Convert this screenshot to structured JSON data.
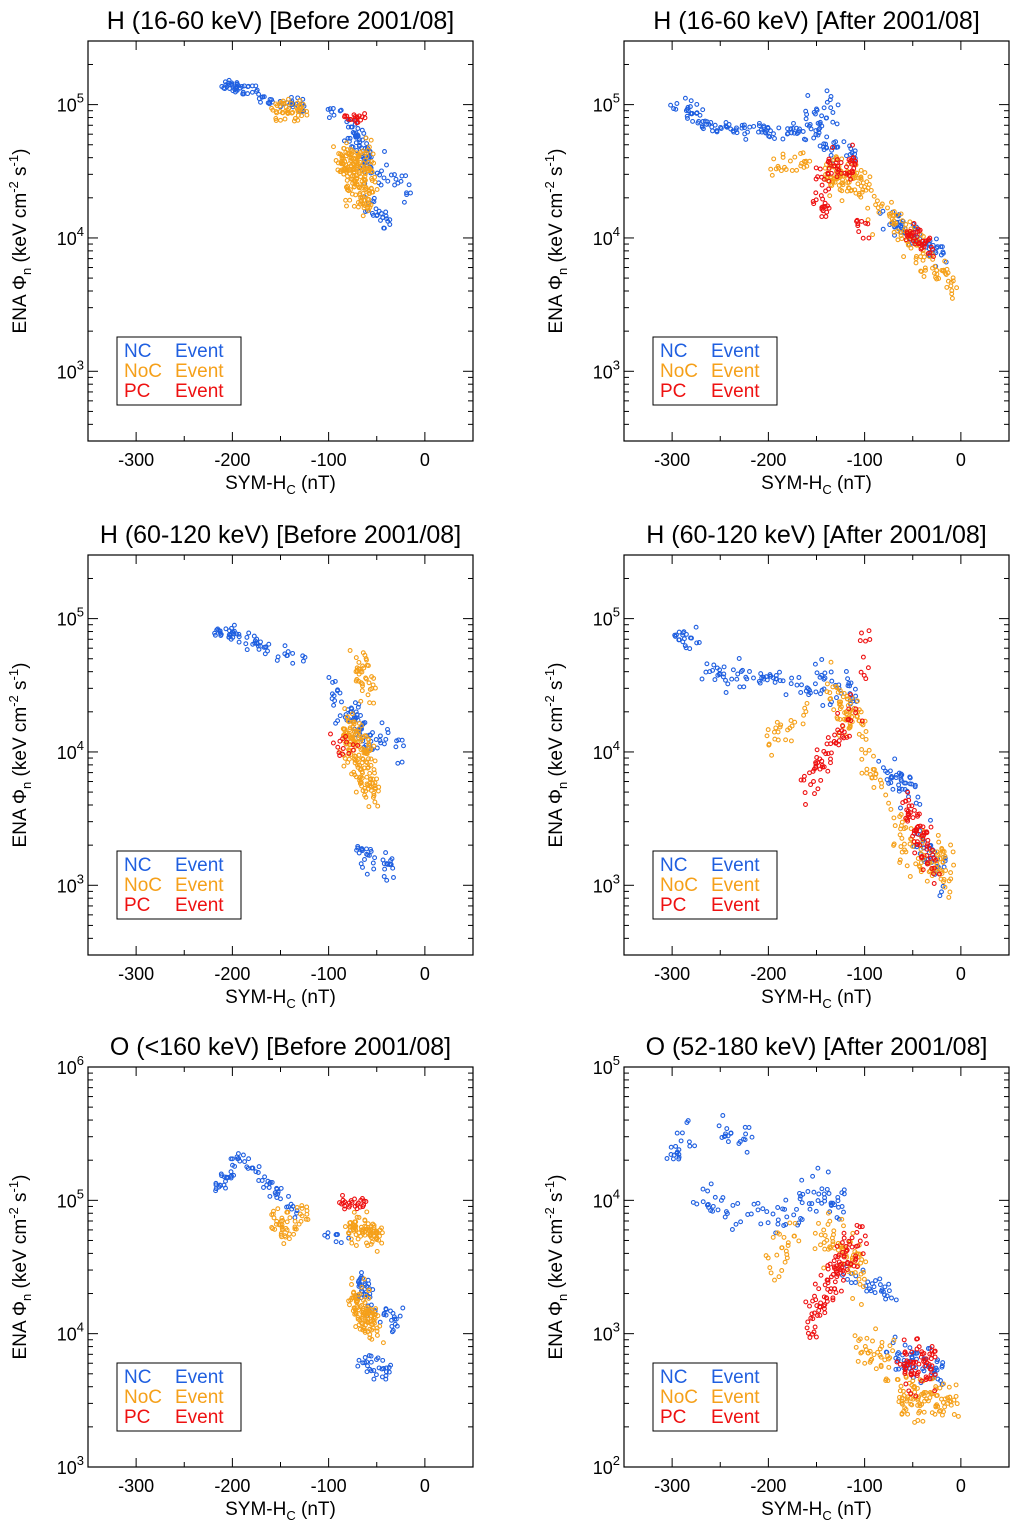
{
  "colors": {
    "nc": "#1f5fe0",
    "noc": "#f5a01a",
    "pc": "#ee1111",
    "axis": "#000000"
  },
  "legend": {
    "placement": "lower-left",
    "entries": [
      {
        "key": "nc",
        "name": "NC",
        "label": "Event"
      },
      {
        "key": "noc",
        "name": "NoC",
        "label": "Event"
      },
      {
        "key": "pc",
        "name": "PC",
        "label": "Event"
      }
    ]
  },
  "chart_data": [
    {
      "type": "scatter",
      "title": "H (16-60 keV) [Before 2001/08]",
      "xlabel": "SYM-H_C (nT)",
      "ylabel": "ENA Φ_n (keV cm^-2 s^-1)",
      "xlim": [
        -350,
        50
      ],
      "ylim": [
        300,
        300000
      ],
      "yscale": "log",
      "xticks": [
        -300,
        -200,
        -100,
        0
      ],
      "yticks": [
        "10^3",
        "10^4",
        "10^5"
      ],
      "series": [
        {
          "key": "nc",
          "clusters": [
            {
              "x0": -215,
              "x1": -175,
              "y0": 140000,
              "y1": 130000,
              "n": 40,
              "s": 0.05
            },
            {
              "x0": -175,
              "x1": -125,
              "y0": 120000,
              "y1": 95000,
              "n": 35,
              "s": 0.07
            },
            {
              "x0": -100,
              "x1": -90,
              "y0": 88000,
              "y1": 82000,
              "n": 8,
              "s": 0.05
            },
            {
              "x0": -80,
              "x1": -55,
              "y0": 75000,
              "y1": 35000,
              "n": 60,
              "s": 0.12
            },
            {
              "x0": -65,
              "x1": -15,
              "y0": 35000,
              "y1": 23000,
              "n": 30,
              "s": 0.1
            },
            {
              "x0": -60,
              "x1": -35,
              "y0": 18000,
              "y1": 12500,
              "n": 25,
              "s": 0.08
            }
          ]
        },
        {
          "key": "noc",
          "clusters": [
            {
              "x0": -158,
              "x1": -125,
              "y0": 90000,
              "y1": 92000,
              "n": 50,
              "s": 0.08
            },
            {
              "x0": -90,
              "x1": -55,
              "y0": 42000,
              "y1": 35000,
              "n": 90,
              "s": 0.12
            },
            {
              "x0": -85,
              "x1": -55,
              "y0": 30000,
              "y1": 22000,
              "n": 90,
              "s": 0.15
            },
            {
              "x0": -75,
              "x1": -60,
              "y0": 20000,
              "y1": 17000,
              "n": 20,
              "s": 0.08
            }
          ]
        },
        {
          "key": "pc",
          "clusters": [
            {
              "x0": -82,
              "x1": -68,
              "y0": 80000,
              "y1": 80000,
              "n": 20,
              "s": 0.04
            }
          ]
        }
      ]
    },
    {
      "type": "scatter",
      "title": "H (16-60 keV) [After 2001/08]",
      "xlabel": "SYM-H_C (nT)",
      "ylabel": "ENA Φ_n (keV cm^-2 s^-1)",
      "xlim": [
        -350,
        50
      ],
      "ylim": [
        300,
        300000
      ],
      "yscale": "log",
      "xticks": [
        -300,
        -200,
        -100,
        0
      ],
      "yticks": [
        "10^3",
        "10^4",
        "10^5"
      ],
      "series": [
        {
          "key": "nc",
          "clusters": [
            {
              "x0": -300,
              "x1": -270,
              "y0": 95000,
              "y1": 85000,
              "n": 25,
              "s": 0.1
            },
            {
              "x0": -270,
              "x1": -165,
              "y0": 70000,
              "y1": 63000,
              "n": 70,
              "s": 0.06
            },
            {
              "x0": -165,
              "x1": -130,
              "y0": 70000,
              "y1": 90000,
              "n": 40,
              "s": 0.18
            },
            {
              "x0": -150,
              "x1": -110,
              "y0": 48000,
              "y1": 40000,
              "n": 25,
              "s": 0.08
            },
            {
              "x0": -80,
              "x1": -20,
              "y0": 15000,
              "y1": 7500,
              "n": 70,
              "s": 0.1
            }
          ]
        },
        {
          "key": "noc",
          "clusters": [
            {
              "x0": -200,
              "x1": -160,
              "y0": 33000,
              "y1": 38000,
              "n": 25,
              "s": 0.08
            },
            {
              "x0": -140,
              "x1": -95,
              "y0": 30000,
              "y1": 25000,
              "n": 100,
              "s": 0.15
            },
            {
              "x0": -90,
              "x1": -40,
              "y0": 18000,
              "y1": 8500,
              "n": 60,
              "s": 0.12
            },
            {
              "x0": -45,
              "x1": -5,
              "y0": 7000,
              "y1": 4500,
              "n": 40,
              "s": 0.1
            }
          ]
        },
        {
          "key": "pc",
          "clusters": [
            {
              "x0": -150,
              "x1": -110,
              "y0": 30000,
              "y1": 35000,
              "n": 50,
              "s": 0.1
            },
            {
              "x0": -150,
              "x1": -140,
              "y0": 22000,
              "y1": 16000,
              "n": 20,
              "s": 0.08
            },
            {
              "x0": -110,
              "x1": -100,
              "y0": 14000,
              "y1": 12000,
              "n": 10,
              "s": 0.08
            },
            {
              "x0": -55,
              "x1": -30,
              "y0": 11000,
              "y1": 8000,
              "n": 45,
              "s": 0.08
            }
          ]
        }
      ]
    },
    {
      "type": "scatter",
      "title": "H (60-120 keV) [Before 2001/08]",
      "xlabel": "SYM-H_C (nT)",
      "ylabel": "ENA Φ_n (keV cm^-2 s^-1)",
      "xlim": [
        -350,
        50
      ],
      "ylim": [
        300,
        300000
      ],
      "yscale": "log",
      "xticks": [
        -300,
        -200,
        -100,
        0
      ],
      "yticks": [
        "10^3",
        "10^4",
        "10^5"
      ],
      "series": [
        {
          "key": "nc",
          "clusters": [
            {
              "x0": -215,
              "x1": -195,
              "y0": 78000,
              "y1": 75000,
              "n": 25,
              "s": 0.05
            },
            {
              "x0": -195,
              "x1": -125,
              "y0": 70000,
              "y1": 48000,
              "n": 35,
              "s": 0.06
            },
            {
              "x0": -100,
              "x1": -85,
              "y0": 30000,
              "y1": 20000,
              "n": 15,
              "s": 0.15
            },
            {
              "x0": -80,
              "x1": -55,
              "y0": 20000,
              "y1": 12000,
              "n": 45,
              "s": 0.15
            },
            {
              "x0": -60,
              "x1": -20,
              "y0": 14000,
              "y1": 10000,
              "n": 20,
              "s": 0.1
            },
            {
              "x0": -70,
              "x1": -35,
              "y0": 1800,
              "y1": 1300,
              "n": 35,
              "s": 0.12
            }
          ]
        },
        {
          "key": "noc",
          "clusters": [
            {
              "x0": -70,
              "x1": -55,
              "y0": 40000,
              "y1": 30000,
              "n": 40,
              "s": 0.2
            },
            {
              "x0": -85,
              "x1": -55,
              "y0": 14000,
              "y1": 9000,
              "n": 120,
              "s": 0.18
            },
            {
              "x0": -70,
              "x1": -50,
              "y0": 7000,
              "y1": 5000,
              "n": 50,
              "s": 0.12
            }
          ]
        },
        {
          "key": "pc",
          "clusters": [
            {
              "x0": -95,
              "x1": -65,
              "y0": 11000,
              "y1": 12000,
              "n": 15,
              "s": 0.08
            }
          ]
        }
      ]
    },
    {
      "type": "scatter",
      "title": "H (60-120 keV) [After 2001/08]",
      "xlabel": "SYM-H_C (nT)",
      "ylabel": "ENA Φ_n (keV cm^-2 s^-1)",
      "xlim": [
        -350,
        50
      ],
      "ylim": [
        300,
        300000
      ],
      "yscale": "log",
      "xticks": [
        -300,
        -200,
        -100,
        0
      ],
      "yticks": [
        "10^3",
        "10^4",
        "10^5"
      ],
      "series": [
        {
          "key": "nc",
          "clusters": [
            {
              "x0": -300,
              "x1": -270,
              "y0": 75000,
              "y1": 70000,
              "n": 20,
              "s": 0.1
            },
            {
              "x0": -270,
              "x1": -160,
              "y0": 40000,
              "y1": 33000,
              "n": 60,
              "s": 0.1
            },
            {
              "x0": -160,
              "x1": -110,
              "y0": 32000,
              "y1": 30000,
              "n": 40,
              "s": 0.15
            },
            {
              "x0": -80,
              "x1": -45,
              "y0": 7000,
              "y1": 5000,
              "n": 40,
              "s": 0.12
            },
            {
              "x0": -45,
              "x1": -15,
              "y0": 2500,
              "y1": 1000,
              "n": 40,
              "s": 0.15
            }
          ]
        },
        {
          "key": "noc",
          "clusters": [
            {
              "x0": -200,
              "x1": -160,
              "y0": 13000,
              "y1": 18000,
              "n": 25,
              "s": 0.12
            },
            {
              "x0": -135,
              "x1": -100,
              "y0": 25000,
              "y1": 15000,
              "n": 70,
              "s": 0.2
            },
            {
              "x0": -100,
              "x1": -80,
              "y0": 7000,
              "y1": 5500,
              "n": 20,
              "s": 0.15
            },
            {
              "x0": -70,
              "x1": -10,
              "y0": 2500,
              "y1": 1200,
              "n": 90,
              "s": 0.22
            }
          ]
        },
        {
          "key": "pc",
          "clusters": [
            {
              "x0": -165,
              "x1": -110,
              "y0": 5000,
              "y1": 20000,
              "n": 60,
              "s": 0.15
            },
            {
              "x0": -100,
              "x1": -98,
              "y0": 35000,
              "y1": 70000,
              "n": 10,
              "s": 0.2
            },
            {
              "x0": -60,
              "x1": -25,
              "y0": 4000,
              "y1": 1500,
              "n": 70,
              "s": 0.18
            }
          ]
        }
      ]
    },
    {
      "type": "scatter",
      "title": "O (<160 keV) [Before 2001/08]",
      "xlabel": "SYM-H_C (nT)",
      "ylabel": "ENA Φ_n (keV cm^-2 s^-1)",
      "xlim": [
        -350,
        50
      ],
      "ylim": [
        1000,
        1000000
      ],
      "yscale": "log",
      "xticks": [
        -300,
        -200,
        -100,
        0
      ],
      "yticks": [
        "10^3",
        "10^4",
        "10^5",
        "10^6"
      ],
      "series": [
        {
          "key": "nc",
          "clusters": [
            {
              "x0": -215,
              "x1": -190,
              "y0": 120000,
              "y1": 210000,
              "n": 30,
              "s": 0.06
            },
            {
              "x0": -190,
              "x1": -130,
              "y0": 200000,
              "y1": 80000,
              "n": 40,
              "s": 0.06
            },
            {
              "x0": -100,
              "x1": -85,
              "y0": 55000,
              "y1": 52000,
              "n": 10,
              "s": 0.05
            },
            {
              "x0": -70,
              "x1": -55,
              "y0": 25000,
              "y1": 20000,
              "n": 30,
              "s": 0.1
            },
            {
              "x0": -60,
              "x1": -20,
              "y0": 15000,
              "y1": 12000,
              "n": 25,
              "s": 0.1
            },
            {
              "x0": -65,
              "x1": -35,
              "y0": 6500,
              "y1": 5000,
              "n": 30,
              "s": 0.08
            }
          ]
        },
        {
          "key": "noc",
          "clusters": [
            {
              "x0": -160,
              "x1": -145,
              "y0": 70000,
              "y1": 55000,
              "n": 20,
              "s": 0.12
            },
            {
              "x0": -150,
              "x1": -125,
              "y0": 60000,
              "y1": 80000,
              "n": 30,
              "s": 0.12
            },
            {
              "x0": -80,
              "x1": -45,
              "y0": 65000,
              "y1": 55000,
              "n": 80,
              "s": 0.1
            },
            {
              "x0": -75,
              "x1": -50,
              "y0": 18000,
              "y1": 12000,
              "n": 110,
              "s": 0.15
            }
          ]
        },
        {
          "key": "pc",
          "clusters": [
            {
              "x0": -90,
              "x1": -60,
              "y0": 95000,
              "y1": 95000,
              "n": 25,
              "s": 0.04
            }
          ]
        }
      ]
    },
    {
      "type": "scatter",
      "title": "O (52-180 keV) [After 2001/08]",
      "xlabel": "SYM-H_C (nT)",
      "ylabel": "ENA Φ_n (keV cm^-2 s^-1)",
      "xlim": [
        -350,
        50
      ],
      "ylim": [
        100,
        100000
      ],
      "yscale": "log",
      "xticks": [
        -300,
        -200,
        -100,
        0
      ],
      "yticks": [
        "10^2",
        "10^3",
        "10^4",
        "10^5"
      ],
      "series": [
        {
          "key": "nc",
          "clusters": [
            {
              "x0": -300,
              "x1": -280,
              "y0": 22000,
              "y1": 30000,
              "n": 20,
              "s": 0.1
            },
            {
              "x0": -250,
              "x1": -220,
              "y0": 33000,
              "y1": 28000,
              "n": 20,
              "s": 0.1
            },
            {
              "x0": -280,
              "x1": -165,
              "y0": 10000,
              "y1": 7000,
              "n": 50,
              "s": 0.15
            },
            {
              "x0": -170,
              "x1": -120,
              "y0": 12000,
              "y1": 9000,
              "n": 40,
              "s": 0.15
            },
            {
              "x0": -120,
              "x1": -70,
              "y0": 2500,
              "y1": 2000,
              "n": 30,
              "s": 0.1
            },
            {
              "x0": -70,
              "x1": -20,
              "y0": 700,
              "y1": 500,
              "n": 60,
              "s": 0.12
            }
          ]
        },
        {
          "key": "noc",
          "clusters": [
            {
              "x0": -200,
              "x1": -170,
              "y0": 3000,
              "y1": 6000,
              "n": 25,
              "s": 0.15
            },
            {
              "x0": -150,
              "x1": -100,
              "y0": 6000,
              "y1": 3000,
              "n": 70,
              "s": 0.2
            },
            {
              "x0": -110,
              "x1": -70,
              "y0": 800,
              "y1": 600,
              "n": 40,
              "s": 0.15
            },
            {
              "x0": -70,
              "x1": -5,
              "y0": 350,
              "y1": 300,
              "n": 100,
              "s": 0.15
            }
          ]
        },
        {
          "key": "pc",
          "clusters": [
            {
              "x0": -160,
              "x1": -100,
              "y0": 1200,
              "y1": 6000,
              "n": 110,
              "s": 0.18
            },
            {
              "x0": -60,
              "x1": -25,
              "y0": 500,
              "y1": 700,
              "n": 70,
              "s": 0.2
            }
          ]
        }
      ]
    }
  ]
}
